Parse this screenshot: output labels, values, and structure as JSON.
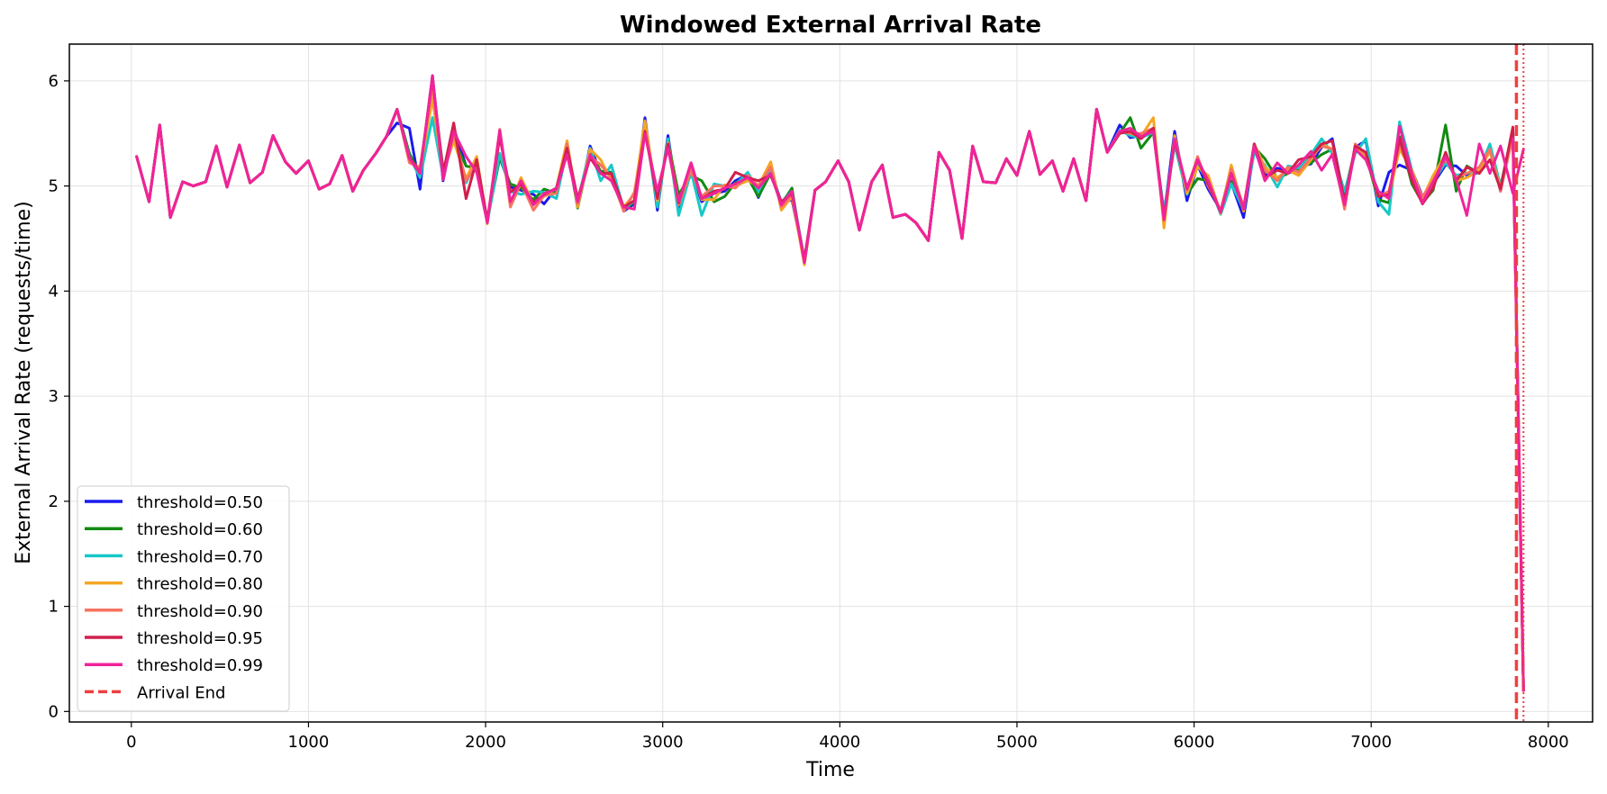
{
  "chart_data": {
    "type": "line",
    "title": "Windowed External Arrival Rate",
    "xlabel": "Time",
    "ylabel": "External Arrival Rate (requests/time)",
    "xlim": [
      -350,
      8250
    ],
    "ylim": [
      -0.1,
      6.35
    ],
    "xticks": [
      0,
      1000,
      2000,
      3000,
      4000,
      5000,
      6000,
      7000,
      8000
    ],
    "yticks": [
      0,
      1,
      2,
      3,
      4,
      5,
      6
    ],
    "grid": true,
    "legend_position": "lower-left",
    "x": [
      30,
      100,
      160,
      220,
      290,
      350,
      420,
      480,
      540,
      610,
      670,
      740,
      800,
      870,
      930,
      1000,
      1060,
      1120,
      1190,
      1250,
      1310,
      1380,
      1440,
      1500,
      1570,
      1630,
      1700,
      1760,
      1820,
      1890,
      1950,
      2010,
      2080,
      2140,
      2200,
      2270,
      2330,
      2400,
      2460,
      2520,
      2590,
      2650,
      2710,
      2780,
      2840,
      2900,
      2970,
      3030,
      3090,
      3160,
      3220,
      3290,
      3350,
      3410,
      3480,
      3540,
      3610,
      3670,
      3730,
      3800,
      3860,
      3920,
      3990,
      4050,
      4110,
      4180,
      4240,
      4300,
      4370,
      4430,
      4500,
      4560,
      4620,
      4690,
      4750,
      4810,
      4880,
      4940,
      5000,
      5070,
      5130,
      5200,
      5260,
      5320,
      5390,
      5450,
      5510,
      5580,
      5640,
      5700,
      5770,
      5830,
      5890,
      5960,
      6020,
      6080,
      6150,
      6210,
      6280,
      6340,
      6400,
      6470,
      6530,
      6590,
      6660,
      6720,
      6780,
      6850,
      6910,
      6970,
      7040,
      7100,
      7160,
      7230,
      7290,
      7350,
      7420,
      7480,
      7540,
      7610,
      7670,
      7730,
      7800,
      7860
    ],
    "series": [
      {
        "name": "threshold=0.50",
        "color": "#1a1aee",
        "values": [
          5.28,
          4.85,
          5.58,
          4.7,
          5.04,
          5.0,
          5.04,
          5.38,
          4.99,
          5.39,
          5.03,
          5.13,
          5.48,
          5.23,
          5.12,
          5.24,
          4.97,
          5.02,
          5.29,
          4.95,
          5.15,
          5.31,
          5.47,
          5.6,
          5.55,
          4.97,
          6.05,
          5.05,
          5.55,
          5.19,
          5.17,
          4.68,
          5.27,
          4.99,
          4.96,
          4.92,
          4.83,
          4.98,
          5.38,
          4.8,
          5.38,
          5.12,
          5.13,
          4.76,
          4.83,
          5.65,
          4.77,
          5.48,
          4.8,
          5.16,
          4.85,
          4.93,
          4.95,
          5.05,
          5.11,
          4.89,
          5.16,
          4.84,
          4.87,
          4.29,
          4.96,
          5.04,
          5.24,
          5.04,
          4.58,
          5.04,
          5.2,
          4.7,
          4.73,
          4.65,
          4.48,
          5.32,
          5.15,
          4.5,
          5.38,
          5.04,
          5.03,
          5.26,
          5.1,
          5.52,
          5.11,
          5.24,
          4.95,
          5.26,
          4.86,
          5.73,
          5.32,
          5.58,
          5.46,
          5.48,
          5.53,
          4.72,
          5.52,
          4.86,
          5.2,
          4.97,
          4.77,
          5.03,
          4.7,
          5.35,
          5.1,
          5.17,
          5.15,
          5.19,
          5.21,
          5.37,
          5.45,
          4.86,
          5.37,
          5.43,
          4.81,
          5.13,
          5.2,
          5.15,
          4.9,
          5.02,
          5.2,
          5.19,
          5.1,
          5.13,
          5.36,
          4.95,
          5.55,
          0.2
        ]
      },
      {
        "name": "threshold=0.60",
        "color": "#128a12",
        "values": [
          5.28,
          4.85,
          5.58,
          4.7,
          5.04,
          5.0,
          5.04,
          5.38,
          4.99,
          5.39,
          5.03,
          5.13,
          5.48,
          5.23,
          5.12,
          5.24,
          4.97,
          5.02,
          5.29,
          4.95,
          5.15,
          5.31,
          5.47,
          5.73,
          5.31,
          5.11,
          5.98,
          5.16,
          5.44,
          5.19,
          5.17,
          4.68,
          5.27,
          5.02,
          4.98,
          4.87,
          4.97,
          4.93,
          5.38,
          4.79,
          5.32,
          5.14,
          5.13,
          4.77,
          4.85,
          5.58,
          4.84,
          5.43,
          4.92,
          5.1,
          5.05,
          4.85,
          4.9,
          5.03,
          5.08,
          4.9,
          5.12,
          4.83,
          4.98,
          4.26,
          4.96,
          5.04,
          5.24,
          5.04,
          4.58,
          5.04,
          5.2,
          4.7,
          4.73,
          4.65,
          4.48,
          5.32,
          5.15,
          4.5,
          5.38,
          5.04,
          5.03,
          5.26,
          5.1,
          5.52,
          5.11,
          5.24,
          4.95,
          5.26,
          4.86,
          5.73,
          5.32,
          5.5,
          5.65,
          5.36,
          5.51,
          4.73,
          5.4,
          4.92,
          5.07,
          5.05,
          4.74,
          5.05,
          4.77,
          5.37,
          5.26,
          5.07,
          5.12,
          5.16,
          5.22,
          5.3,
          5.35,
          4.93,
          5.35,
          5.29,
          4.87,
          4.84,
          5.47,
          5.02,
          4.84,
          4.96,
          5.58,
          4.95,
          5.19,
          5.12,
          5.35,
          5.0,
          5.52,
          0.2
        ]
      },
      {
        "name": "threshold=0.70",
        "color": "#16c8c8",
        "values": [
          5.28,
          4.85,
          5.58,
          4.7,
          5.04,
          5.0,
          5.04,
          5.38,
          4.99,
          5.39,
          5.03,
          5.13,
          5.48,
          5.23,
          5.12,
          5.24,
          4.97,
          5.02,
          5.29,
          4.95,
          5.15,
          5.31,
          5.47,
          5.73,
          5.28,
          5.08,
          5.65,
          5.09,
          5.48,
          5.03,
          5.25,
          4.65,
          5.31,
          4.95,
          4.92,
          4.95,
          4.94,
          4.88,
          5.35,
          4.85,
          5.36,
          5.05,
          5.2,
          4.78,
          4.86,
          5.6,
          4.8,
          5.45,
          4.72,
          5.14,
          4.72,
          5.02,
          5.0,
          5.01,
          5.13,
          4.95,
          5.16,
          4.84,
          4.95,
          4.3,
          4.96,
          5.04,
          5.24,
          5.04,
          4.58,
          5.04,
          5.2,
          4.7,
          4.73,
          4.65,
          4.48,
          5.32,
          5.15,
          4.5,
          5.38,
          5.04,
          5.03,
          5.26,
          5.1,
          5.52,
          5.11,
          5.24,
          4.95,
          5.26,
          4.86,
          5.73,
          5.32,
          5.53,
          5.48,
          5.46,
          5.51,
          4.76,
          5.41,
          4.92,
          5.2,
          5.05,
          4.73,
          5.02,
          4.78,
          5.32,
          5.2,
          4.99,
          5.19,
          5.17,
          5.3,
          5.45,
          5.31,
          4.95,
          5.31,
          5.45,
          4.85,
          4.73,
          5.61,
          5.15,
          4.85,
          5.04,
          5.22,
          5.1,
          5.12,
          5.15,
          5.4,
          5.0,
          5.47,
          0.2
        ]
      },
      {
        "name": "threshold=0.80",
        "color": "#f5a623",
        "values": [
          5.28,
          4.85,
          5.58,
          4.7,
          5.04,
          5.0,
          5.04,
          5.38,
          4.99,
          5.39,
          5.03,
          5.13,
          5.48,
          5.23,
          5.12,
          5.24,
          4.97,
          5.02,
          5.29,
          4.95,
          5.15,
          5.31,
          5.47,
          5.73,
          5.24,
          5.15,
          5.83,
          5.12,
          5.43,
          5.07,
          5.28,
          4.64,
          5.52,
          4.82,
          5.08,
          4.83,
          4.9,
          4.98,
          5.43,
          4.8,
          5.35,
          5.25,
          5.05,
          4.8,
          4.92,
          5.62,
          4.86,
          5.41,
          4.85,
          5.2,
          4.87,
          4.87,
          5.01,
          5.0,
          5.05,
          5.0,
          5.23,
          4.77,
          4.9,
          4.25,
          4.96,
          5.04,
          5.24,
          5.04,
          4.58,
          5.04,
          5.2,
          4.7,
          4.73,
          4.65,
          4.48,
          5.32,
          5.15,
          4.5,
          5.38,
          5.04,
          5.03,
          5.26,
          5.1,
          5.52,
          5.11,
          5.24,
          4.95,
          5.26,
          4.86,
          5.73,
          5.32,
          5.52,
          5.5,
          5.47,
          5.65,
          4.6,
          5.48,
          4.93,
          5.18,
          5.1,
          4.74,
          5.2,
          4.76,
          5.4,
          5.18,
          5.08,
          5.15,
          5.1,
          5.25,
          5.4,
          5.35,
          4.83,
          5.38,
          5.28,
          4.92,
          4.9,
          5.35,
          5.15,
          4.88,
          5.1,
          5.3,
          5.05,
          5.08,
          5.15,
          5.33,
          4.98,
          5.5,
          0.2
        ]
      },
      {
        "name": "threshold=0.90",
        "color": "#f87360",
        "values": [
          5.28,
          4.85,
          5.58,
          4.7,
          5.04,
          5.0,
          5.04,
          5.38,
          4.99,
          5.39,
          5.03,
          5.13,
          5.48,
          5.23,
          5.12,
          5.24,
          4.97,
          5.02,
          5.29,
          4.95,
          5.15,
          5.31,
          5.47,
          5.73,
          5.22,
          5.18,
          5.95,
          5.1,
          5.5,
          5.05,
          5.21,
          4.66,
          5.54,
          4.8,
          5.03,
          4.77,
          4.91,
          4.93,
          5.4,
          4.83,
          5.28,
          5.2,
          5.08,
          4.76,
          4.94,
          5.5,
          4.93,
          5.37,
          4.82,
          5.15,
          4.9,
          5.0,
          5.0,
          4.98,
          5.1,
          5.0,
          5.18,
          4.8,
          4.92,
          4.28,
          4.96,
          5.04,
          5.24,
          5.04,
          4.58,
          5.04,
          5.2,
          4.7,
          4.73,
          4.65,
          4.48,
          5.32,
          5.15,
          4.5,
          5.38,
          5.04,
          5.03,
          5.26,
          5.1,
          5.52,
          5.11,
          5.24,
          4.95,
          5.26,
          4.86,
          5.73,
          5.32,
          5.52,
          5.5,
          5.5,
          5.55,
          4.67,
          5.45,
          4.96,
          5.28,
          5.0,
          4.77,
          5.16,
          4.8,
          5.4,
          5.15,
          5.05,
          5.18,
          5.13,
          5.27,
          5.38,
          5.35,
          4.78,
          5.4,
          5.3,
          4.9,
          4.95,
          5.4,
          5.1,
          4.9,
          5.05,
          5.26,
          5.08,
          5.12,
          5.18,
          5.35,
          4.95,
          5.48,
          0.2
        ]
      },
      {
        "name": "threshold=0.95",
        "color": "#d11f4b",
        "values": [
          5.28,
          4.85,
          5.58,
          4.7,
          5.04,
          5.0,
          5.04,
          5.38,
          4.99,
          5.39,
          5.03,
          5.13,
          5.48,
          5.23,
          5.12,
          5.24,
          4.97,
          5.02,
          5.29,
          4.95,
          5.15,
          5.31,
          5.47,
          5.73,
          5.27,
          5.13,
          6.04,
          5.12,
          5.6,
          4.88,
          5.25,
          4.67,
          5.47,
          4.94,
          5.02,
          4.84,
          4.92,
          4.98,
          5.36,
          4.88,
          5.27,
          5.12,
          5.12,
          4.8,
          4.86,
          5.52,
          4.88,
          5.4,
          4.84,
          5.22,
          4.88,
          4.95,
          4.97,
          5.13,
          5.08,
          5.05,
          5.1,
          4.85,
          4.93,
          4.3,
          4.96,
          5.04,
          5.24,
          5.04,
          4.58,
          5.04,
          5.2,
          4.7,
          4.73,
          4.65,
          4.48,
          5.32,
          5.15,
          4.5,
          5.38,
          5.04,
          5.03,
          5.26,
          5.1,
          5.52,
          5.11,
          5.24,
          4.95,
          5.26,
          4.86,
          5.73,
          5.32,
          5.5,
          5.52,
          5.45,
          5.55,
          4.7,
          5.43,
          4.98,
          5.25,
          5.02,
          4.75,
          5.12,
          4.78,
          5.4,
          5.08,
          5.15,
          5.12,
          5.25,
          5.28,
          5.4,
          5.43,
          4.85,
          5.38,
          5.32,
          4.9,
          4.92,
          5.45,
          5.05,
          4.83,
          4.98,
          5.32,
          5.05,
          5.18,
          5.12,
          5.25,
          4.97,
          5.56,
          0.2
        ]
      },
      {
        "name": "threshold=0.99",
        "color": "#f0239a",
        "values": [
          5.28,
          4.85,
          5.58,
          4.7,
          5.04,
          5.0,
          5.04,
          5.38,
          4.99,
          5.39,
          5.03,
          5.13,
          5.48,
          5.23,
          5.12,
          5.24,
          4.97,
          5.02,
          5.29,
          4.95,
          5.15,
          5.31,
          5.47,
          5.73,
          5.26,
          5.12,
          6.05,
          5.06,
          5.52,
          5.28,
          5.13,
          4.65,
          5.53,
          4.85,
          5.05,
          4.82,
          4.93,
          4.97,
          5.3,
          4.85,
          5.3,
          5.12,
          5.05,
          4.8,
          4.78,
          5.5,
          4.95,
          5.36,
          4.85,
          5.22,
          4.88,
          4.93,
          4.98,
          5.02,
          5.08,
          4.98,
          5.12,
          4.82,
          4.95,
          4.27,
          4.96,
          5.04,
          5.24,
          5.04,
          4.58,
          5.04,
          5.2,
          4.7,
          4.73,
          4.65,
          4.48,
          5.32,
          5.15,
          4.5,
          5.38,
          5.04,
          5.03,
          5.26,
          5.1,
          5.52,
          5.11,
          5.24,
          4.95,
          5.26,
          4.86,
          5.73,
          5.32,
          5.52,
          5.55,
          5.47,
          5.52,
          4.68,
          5.45,
          4.97,
          5.25,
          5.05,
          4.75,
          5.12,
          4.78,
          5.38,
          5.05,
          5.22,
          5.12,
          5.2,
          5.33,
          5.15,
          5.3,
          4.82,
          5.35,
          5.25,
          4.95,
          4.88,
          5.57,
          5.12,
          4.84,
          5.04,
          5.28,
          5.06,
          4.72,
          5.4,
          5.12,
          5.38,
          4.93,
          5.35
        ]
      }
    ],
    "lines": [
      {
        "name": "Arrival End",
        "x": 7820,
        "color": "#ef4040",
        "style": "dashed"
      },
      {
        "x": 7860,
        "color": "#ef4040",
        "style": "dotted"
      }
    ],
    "tail": {
      "x": [
        7800,
        7860
      ],
      "values": [
        5.45,
        0.2
      ]
    }
  }
}
